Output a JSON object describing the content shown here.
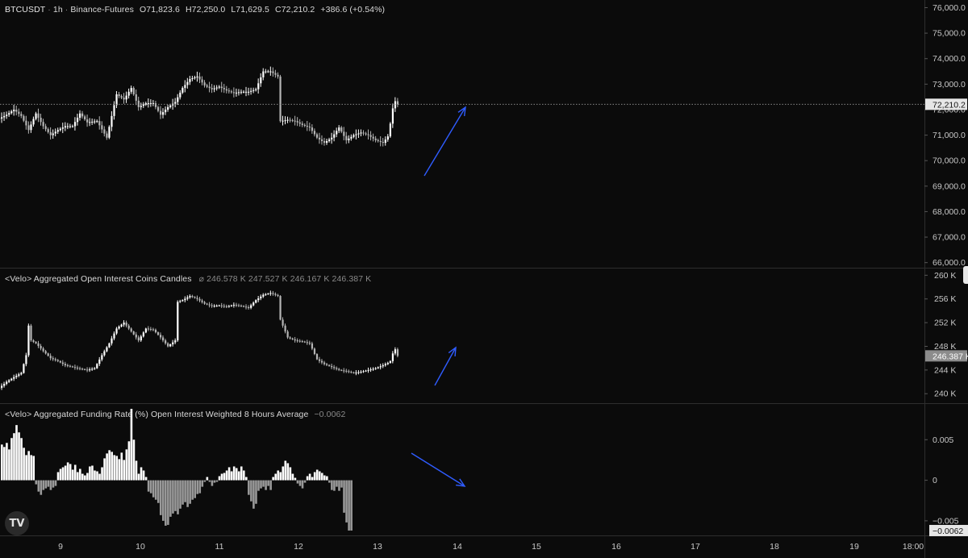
{
  "header": {
    "symbol": "BTCUSDT",
    "interval": "1h",
    "exchange": "Binance-Futures",
    "ohlc": [
      "O71,823.6",
      "H72,250.0",
      "L71,629.5",
      "C72,210.2"
    ],
    "change": "+386.6 (+0.54%)"
  },
  "oi_legend": {
    "title": "<Velo> Aggregated Open Interest Coins Candles",
    "symbol": "⌀",
    "values": [
      "246.578 K",
      "247.527 K",
      "246.167 K",
      "246.387 K"
    ]
  },
  "funding_legend": {
    "title": "<Velo> Aggregated Funding Rate (%) Open Interest Weighted 8 Hours Average",
    "value": "−0.0062"
  },
  "logo_text": "TV",
  "colors": {
    "background": "#0b0b0b",
    "up": "#ffffff",
    "down": "#b5b5b5",
    "neg_bar": "#9a9a9a",
    "pos_bar": "#ffffff",
    "annotation": "#2f5cff",
    "grid": "#2a2a2a"
  },
  "chart_data": [
    {
      "type": "candlestick",
      "name": "BTCUSDT price",
      "ylim": [
        65800,
        76300
      ],
      "yticks": [
        "76,000.0",
        "75,000.0",
        "74,000.0",
        "73,000.0",
        "72,000.0",
        "71,000.0",
        "70,000.0",
        "69,000.0",
        "68,000.0",
        "67,000.0",
        "66,000.0"
      ],
      "ytick_values": [
        76000,
        75000,
        74000,
        73000,
        72000,
        71000,
        70000,
        69000,
        68000,
        67000,
        66000
      ],
      "last_price": 72210.2,
      "last_price_label": "72,210.2",
      "anchors": [
        [
          0,
          71650
        ],
        [
          3,
          71800
        ],
        [
          6,
          72000
        ],
        [
          9,
          71750
        ],
        [
          12,
          71200
        ],
        [
          15,
          71850
        ],
        [
          18,
          71350
        ],
        [
          21,
          71000
        ],
        [
          24,
          71200
        ],
        [
          27,
          71350
        ],
        [
          30,
          71350
        ],
        [
          33,
          71850
        ],
        [
          36,
          71500
        ],
        [
          40,
          71550
        ],
        [
          44,
          70900
        ],
        [
          48,
          72600
        ],
        [
          51,
          72400
        ],
        [
          54,
          72850
        ],
        [
          57,
          72100
        ],
        [
          60,
          72250
        ],
        [
          63,
          72250
        ],
        [
          66,
          71800
        ],
        [
          69,
          72100
        ],
        [
          72,
          72300
        ],
        [
          75,
          72850
        ],
        [
          78,
          73200
        ],
        [
          81,
          73300
        ],
        [
          84,
          72950
        ],
        [
          87,
          72800
        ],
        [
          90,
          72900
        ],
        [
          93,
          72750
        ],
        [
          96,
          72650
        ],
        [
          99,
          72700
        ],
        [
          102,
          72700
        ],
        [
          105,
          72800
        ],
        [
          108,
          73500
        ],
        [
          111,
          73500
        ],
        [
          114,
          73300
        ],
        [
          115,
          71550
        ],
        [
          118,
          71600
        ],
        [
          121,
          71550
        ],
        [
          124,
          71400
        ],
        [
          127,
          71300
        ],
        [
          130,
          70900
        ],
        [
          133,
          70700
        ],
        [
          136,
          70900
        ],
        [
          139,
          71300
        ],
        [
          142,
          70800
        ],
        [
          145,
          71000
        ],
        [
          148,
          71100
        ],
        [
          151,
          71000
        ],
        [
          154,
          70800
        ],
        [
          157,
          70700
        ],
        [
          159,
          70950
        ],
        [
          160,
          71450
        ],
        [
          161,
          72050
        ],
        [
          162,
          72330
        ],
        [
          163,
          72210
        ]
      ],
      "annotations": [
        {
          "type": "arrow",
          "direction": "up"
        }
      ]
    },
    {
      "type": "candlestick",
      "name": "Aggregated Open Interest",
      "ylim": [
        238400,
        261000
      ],
      "yticks": [
        "260 K",
        "256 K",
        "252 K",
        "248 K",
        "244 K",
        "240 K"
      ],
      "ytick_values": [
        260000,
        256000,
        252000,
        248000,
        244000,
        240000
      ],
      "last_value_label": "246.387 K",
      "last_value": 246387,
      "anchors": [
        [
          0,
          241000
        ],
        [
          3,
          242000
        ],
        [
          6,
          242800
        ],
        [
          9,
          243500
        ],
        [
          11,
          246500
        ],
        [
          12,
          251500
        ],
        [
          13,
          249000
        ],
        [
          15,
          248500
        ],
        [
          18,
          247200
        ],
        [
          21,
          246000
        ],
        [
          24,
          245500
        ],
        [
          27,
          244800
        ],
        [
          30,
          244500
        ],
        [
          33,
          244200
        ],
        [
          36,
          244000
        ],
        [
          39,
          244300
        ],
        [
          42,
          246500
        ],
        [
          45,
          248500
        ],
        [
          48,
          251000
        ],
        [
          51,
          252000
        ],
        [
          54,
          250500
        ],
        [
          57,
          249000
        ],
        [
          60,
          251000
        ],
        [
          63,
          250800
        ],
        [
          66,
          249500
        ],
        [
          69,
          248000
        ],
        [
          72,
          249000
        ],
        [
          73,
          255500
        ],
        [
          75,
          255800
        ],
        [
          78,
          256500
        ],
        [
          81,
          256000
        ],
        [
          84,
          255200
        ],
        [
          87,
          254800
        ],
        [
          90,
          254900
        ],
        [
          93,
          254700
        ],
        [
          96,
          255000
        ],
        [
          99,
          254800
        ],
        [
          102,
          254500
        ],
        [
          105,
          255800
        ],
        [
          108,
          256700
        ],
        [
          111,
          257000
        ],
        [
          114,
          256500
        ],
        [
          115,
          252500
        ],
        [
          118,
          249500
        ],
        [
          121,
          249000
        ],
        [
          124,
          248800
        ],
        [
          127,
          248500
        ],
        [
          130,
          245800
        ],
        [
          133,
          245000
        ],
        [
          136,
          244500
        ],
        [
          139,
          244000
        ],
        [
          142,
          243800
        ],
        [
          145,
          243500
        ],
        [
          148,
          243700
        ],
        [
          151,
          244000
        ],
        [
          154,
          244300
        ],
        [
          157,
          244800
        ],
        [
          159,
          245200
        ],
        [
          160,
          245500
        ],
        [
          161,
          246800
        ],
        [
          162,
          247500
        ],
        [
          163,
          246387
        ]
      ],
      "annotations": [
        {
          "type": "arrow",
          "direction": "up"
        }
      ]
    },
    {
      "type": "bar",
      "name": "Aggregated Funding Rate (%)",
      "ylim": [
        -0.0068,
        0.0093
      ],
      "yticks": [
        "0.005",
        "0",
        "−0.005"
      ],
      "ytick_values": [
        0.005,
        0,
        -0.005
      ],
      "last_value_label": "−0.0062",
      "values": [
        0.0044,
        0.0041,
        0.0046,
        0.0038,
        0.0052,
        0.0058,
        0.0068,
        0.0059,
        0.0052,
        0.004,
        0.0031,
        0.0036,
        0.0031,
        0.003,
        -0.0005,
        -0.0014,
        -0.0018,
        -0.0012,
        -0.001,
        -0.0008,
        -0.0012,
        -0.0009,
        -0.0007,
        0.001,
        0.0014,
        0.0016,
        0.0018,
        0.0022,
        0.002,
        0.0013,
        0.0019,
        0.001,
        0.0014,
        0.0008,
        0.0006,
        0.0009,
        0.0017,
        0.0018,
        0.0012,
        0.0011,
        0.0008,
        0.0016,
        0.0027,
        0.0033,
        0.0037,
        0.0035,
        0.0031,
        0.003,
        0.0026,
        0.0034,
        0.0025,
        0.0038,
        0.0048,
        0.0088,
        0.005,
        0.0024,
        0.0008,
        0.0016,
        0.0012,
        0.0004,
        -0.0014,
        -0.0016,
        -0.0021,
        -0.0024,
        -0.0028,
        -0.0043,
        -0.005,
        -0.0056,
        -0.0055,
        -0.0045,
        -0.0041,
        -0.0038,
        -0.0042,
        -0.0035,
        -0.003,
        -0.0027,
        -0.0033,
        -0.0029,
        -0.0024,
        -0.0022,
        -0.0017,
        -0.0016,
        -0.0008,
        -0.0002,
        0.0004,
        -0.0002,
        -0.0007,
        -0.0003,
        -0.0002,
        0.0005,
        0.0008,
        0.0009,
        0.0012,
        0.0016,
        0.0011,
        0.0017,
        0.0015,
        0.0011,
        0.0017,
        0.0012,
        0.0004,
        -0.0018,
        -0.0026,
        -0.0035,
        -0.0029,
        -0.0013,
        -0.001,
        -0.0008,
        -0.0012,
        -0.0007,
        -0.0012,
        0.0004,
        0.0008,
        0.0012,
        0.001,
        0.0017,
        0.0024,
        0.0021,
        0.0016,
        0.0008,
        0.0003,
        -0.0004,
        -0.0007,
        -0.001,
        -0.0003,
        0.0005,
        0.0008,
        0.0004,
        0.001,
        0.0013,
        0.0011,
        0.0009,
        0.0006,
        0.0005,
        -0.0003,
        -0.0012,
        -0.0013,
        -0.0008,
        -0.0013,
        -0.0009,
        -0.004,
        -0.0052,
        -0.0062,
        -0.0062
      ],
      "annotations": [
        {
          "type": "arrow",
          "direction": "down"
        }
      ]
    }
  ],
  "x_axis": {
    "labels": [
      "9",
      "10",
      "11",
      "12",
      "13",
      "14",
      "15",
      "16",
      "17",
      "18",
      "19",
      "18:00"
    ]
  }
}
